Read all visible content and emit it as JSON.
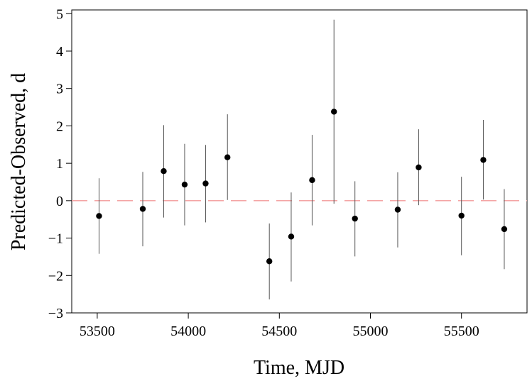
{
  "chart_data": {
    "type": "scatter",
    "title": "",
    "xlabel": "Time, MJD",
    "ylabel": "Predicted-Observed, d",
    "xlim": [
      53360,
      55860
    ],
    "ylim": [
      -3,
      5.1
    ],
    "x_ticks": [
      53500,
      54000,
      54500,
      55000,
      55500
    ],
    "y_ticks": [
      -3,
      -2,
      -1,
      0,
      1,
      2,
      3,
      4,
      5
    ],
    "x_tick_labels": [
      "53500",
      "54000",
      "54500",
      "55000",
      "55500"
    ],
    "y_tick_labels": [
      "−3",
      "−2",
      "−1",
      "0",
      "1",
      "2",
      "3",
      "4",
      "5"
    ],
    "reference_line": {
      "y": 0,
      "style": "dashed",
      "color": "#f4a6a6"
    },
    "marker_color": "#000000",
    "errorbar_color": "#555555",
    "grid": false,
    "legend": "none",
    "series": [
      {
        "points": [
          {
            "x": 53510,
            "y": -0.41,
            "ylow": -1.42,
            "yhigh": 0.6
          },
          {
            "x": 53750,
            "y": -0.22,
            "ylow": -1.22,
            "yhigh": 0.77
          },
          {
            "x": 53865,
            "y": 0.79,
            "ylow": -0.45,
            "yhigh": 2.02
          },
          {
            "x": 53980,
            "y": 0.43,
            "ylow": -0.66,
            "yhigh": 1.52
          },
          {
            "x": 54095,
            "y": 0.46,
            "ylow": -0.58,
            "yhigh": 1.49
          },
          {
            "x": 54215,
            "y": 1.16,
            "ylow": 0.02,
            "yhigh": 2.31
          },
          {
            "x": 54445,
            "y": -1.62,
            "ylow": -2.64,
            "yhigh": -0.61
          },
          {
            "x": 54565,
            "y": -0.96,
            "ylow": -2.16,
            "yhigh": 0.22
          },
          {
            "x": 54680,
            "y": 0.55,
            "ylow": -0.66,
            "yhigh": 1.76
          },
          {
            "x": 54800,
            "y": 2.38,
            "ylow": -0.08,
            "yhigh": 4.84
          },
          {
            "x": 54915,
            "y": -0.48,
            "ylow": -1.49,
            "yhigh": 0.52
          },
          {
            "x": 55150,
            "y": -0.24,
            "ylow": -1.25,
            "yhigh": 0.76
          },
          {
            "x": 55265,
            "y": 0.89,
            "ylow": -0.12,
            "yhigh": 1.91
          },
          {
            "x": 55500,
            "y": -0.4,
            "ylow": -1.46,
            "yhigh": 0.64
          },
          {
            "x": 55620,
            "y": 1.09,
            "ylow": 0.03,
            "yhigh": 2.16
          },
          {
            "x": 55735,
            "y": -0.76,
            "ylow": -1.83,
            "yhigh": 0.31
          }
        ]
      }
    ]
  }
}
